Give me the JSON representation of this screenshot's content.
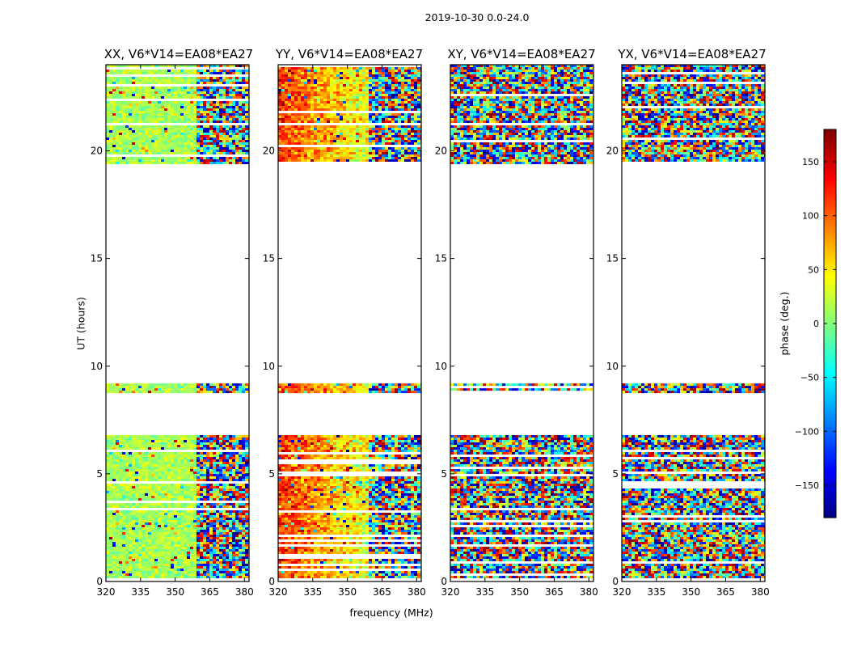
{
  "chart_data": {
    "type": "heatmap",
    "suptitle": "2019-10-30 0.0-24.0",
    "xlabel": "frequency (MHz)",
    "ylabel": "UT (hours)",
    "colorbar_label": "phase (deg.)",
    "colormap": "jet",
    "xlim": [
      320,
      382
    ],
    "ylim": [
      0,
      24
    ],
    "clim": [
      -180,
      180
    ],
    "x_ticks": [
      320,
      335,
      350,
      365,
      380
    ],
    "y_ticks": [
      0,
      5,
      10,
      15,
      20
    ],
    "colorbar_ticks": [
      150,
      100,
      50,
      0,
      -50,
      -100,
      -150
    ],
    "colorbar_tick_labels": [
      "150",
      "100",
      "50",
      "0",
      "−50",
      "−100",
      "−150"
    ],
    "observed_ut_ranges": [
      [
        0.2,
        6.8
      ],
      [
        8.8,
        9.2
      ],
      [
        19.4,
        24.0
      ]
    ],
    "panels": [
      {
        "title": "XX, V6*V14=EA08*EA27",
        "polarization": "XX",
        "dominant_phase_deg": 15,
        "band_scatter_deg": 25
      },
      {
        "title": "YY, V6*V14=EA08*EA27",
        "polarization": "YY",
        "dominant_phase_deg": 120,
        "band_scatter_deg": 40
      },
      {
        "title": "XY, V6*V14=EA08*EA27",
        "polarization": "XY",
        "dominant_phase_deg": null,
        "band_scatter_deg": 180
      },
      {
        "title": "YX, V6*V14=EA08*EA27",
        "polarization": "YX",
        "dominant_phase_deg": null,
        "band_scatter_deg": 180
      }
    ]
  }
}
